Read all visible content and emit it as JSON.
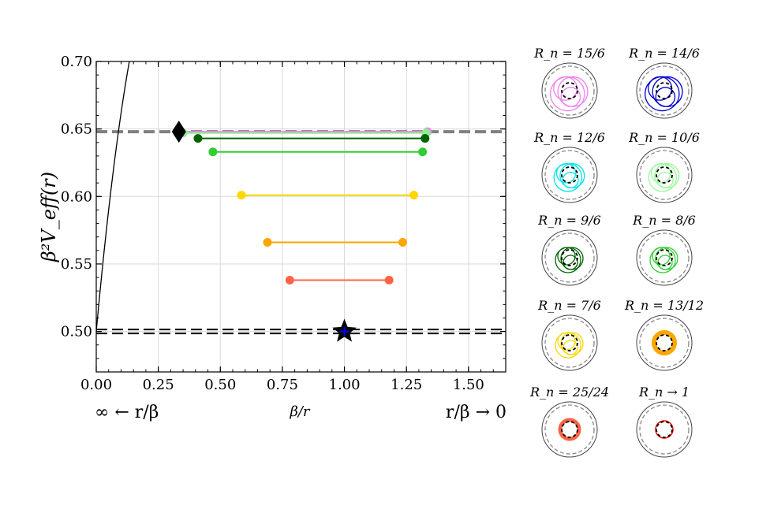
{
  "chart_data": {
    "type": "line",
    "xlabel": "β/r",
    "ylabel": "β²V_eff(r)",
    "x_left_note": "∞ ← r/β",
    "x_right_note": "r/β → 0",
    "xlim": [
      0.0,
      1.65
    ],
    "ylim": [
      0.47,
      0.7
    ],
    "x_ticks": [
      "0.00",
      "0.25",
      "0.50",
      "0.75",
      "1.00",
      "1.25",
      "1.50"
    ],
    "y_ticks": [
      "0.50",
      "0.55",
      "0.60",
      "0.65",
      "0.70"
    ],
    "grid": true,
    "potential": {
      "formula": "u^2/2 - u^3/2 + u^4/4 ... fitted",
      "max_x": 0.333,
      "max_y": 0.648,
      "min_x": 1.0,
      "min_y": 0.5
    },
    "hlines": [
      {
        "y": 0.648,
        "color": "#808080",
        "style": "dashed"
      },
      {
        "y": 0.5,
        "color": "#000000",
        "style": "double-dashed"
      }
    ],
    "levels": [
      {
        "y": 0.648,
        "x1": 0.335,
        "x2": 1.335,
        "color": "#ee82ee"
      },
      {
        "y": 0.647,
        "x1": 0.35,
        "x2": 1.33,
        "color": "#90ee90"
      },
      {
        "y": 0.643,
        "x1": 0.41,
        "x2": 1.325,
        "color": "#006400"
      },
      {
        "y": 0.633,
        "x1": 0.47,
        "x2": 1.315,
        "color": "#32cd32"
      },
      {
        "y": 0.601,
        "x1": 0.585,
        "x2": 1.28,
        "color": "#ffd700"
      },
      {
        "y": 0.566,
        "x1": 0.69,
        "x2": 1.235,
        "color": "#ffa500"
      },
      {
        "y": 0.538,
        "x1": 0.78,
        "x2": 1.18,
        "color": "#ff6347"
      }
    ],
    "markers": [
      {
        "type": "diamond",
        "x": 0.333,
        "y": 0.648,
        "color": "#000000"
      },
      {
        "type": "star",
        "x": 1.0,
        "y": 0.5,
        "color": "#000000",
        "inner": "#0000ff"
      }
    ]
  },
  "orbits": [
    {
      "label": "R_n = 15/6",
      "color": "#ee82ee"
    },
    {
      "label": "R_n = 14/6",
      "color": "#0000cd"
    },
    {
      "label": "R_n = 12/6",
      "color": "#00e5ee"
    },
    {
      "label": "R_n = 10/6",
      "color": "#98fb98"
    },
    {
      "label": "R_n = 9/6",
      "color": "#006400"
    },
    {
      "label": "R_n = 8/6",
      "color": "#32cd32"
    },
    {
      "label": "R_n = 7/6",
      "color": "#ffd700"
    },
    {
      "label": "R_n = 13/12",
      "color": "#ffa500"
    },
    {
      "label": "R_n = 25/24",
      "color": "#ff6347"
    },
    {
      "label": "R_n → 1",
      "color": "#ff0000"
    }
  ]
}
